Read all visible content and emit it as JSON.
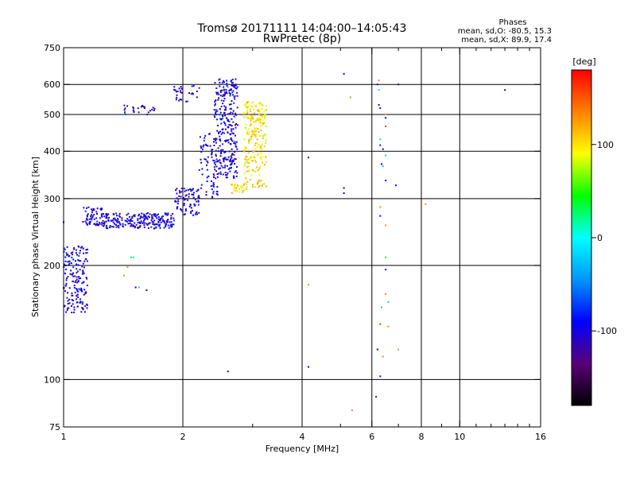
{
  "chart_data": {
    "type": "scatter",
    "title": "Tromsø 20171111 14:04:00–14:05:43",
    "subtitle": "RwPretec (8p)",
    "xlabel": "Frequency [MHz]",
    "ylabel": "Stationary phase Virtual Height [km]",
    "x_scale": "log",
    "y_scale": "log",
    "xlim": [
      1,
      16
    ],
    "ylim": [
      75,
      750
    ],
    "x_ticks": [
      1,
      2,
      4,
      6,
      8,
      10,
      16
    ],
    "x_tick_labels": [
      "1",
      "2",
      "4",
      "6",
      "8",
      "10",
      "16"
    ],
    "x_minor_ticks": [
      3,
      5,
      7,
      9,
      11,
      12,
      13,
      14,
      15
    ],
    "x_grid": [
      2,
      4,
      6,
      8,
      10
    ],
    "y_ticks": [
      75,
      100,
      200,
      300,
      400,
      500,
      600,
      750
    ],
    "y_tick_labels": [
      "75",
      "100",
      "200",
      "300",
      "400",
      "500",
      "600",
      "750"
    ],
    "y_grid": [
      100,
      200,
      300,
      400,
      500,
      600
    ],
    "grid": true,
    "phase_stats": {
      "heading": "Phases",
      "o_line": "mean, sd,O: -80.5, 15.3",
      "x_line": "mean, sd,X:  89.9, 17.4"
    },
    "colorbar": {
      "label": "[deg]",
      "range": [
        -180,
        180
      ],
      "ticks": [
        100,
        0,
        -100
      ],
      "tick_labels": [
        "100",
        "0",
        "-100"
      ],
      "colors": [
        "#000000",
        "#5a0078",
        "#0000ff",
        "#0096ff",
        "#00ffff",
        "#00ff00",
        "#ffff00",
        "#ff8000",
        "#ff0000"
      ]
    },
    "series": [
      {
        "phase": -100,
        "segments": [
          {
            "x_range": [
              1.0,
              1.15
            ],
            "y_range": [
              150,
              225
            ],
            "n": 170
          },
          {
            "x_range": [
              1.12,
              1.25
            ],
            "y_range": [
              255,
              285
            ],
            "n": 60
          },
          {
            "x_range": [
              1.25,
              1.9
            ],
            "y_range": [
              250,
              275
            ],
            "n": 240
          },
          {
            "x_range": [
              1.9,
              2.2
            ],
            "y_range": [
              270,
              320
            ],
            "n": 80
          },
          {
            "x_range": [
              2.2,
              2.45
            ],
            "y_range": [
              300,
              450
            ],
            "n": 80
          },
          {
            "x_range": [
              2.4,
              2.75
            ],
            "y_range": [
              340,
              620
            ],
            "n": 280
          },
          {
            "x_range": [
              1.4,
              1.7
            ],
            "y_range": [
              500,
              530
            ],
            "n": 25
          },
          {
            "x_range": [
              1.9,
              2.2
            ],
            "y_range": [
              540,
              595
            ],
            "n": 30
          }
        ]
      },
      {
        "phase": 100,
        "segments": [
          {
            "x_range": [
              2.65,
              2.9
            ],
            "y_range": [
              310,
              330
            ],
            "n": 30
          },
          {
            "x_range": [
              2.85,
              3.25
            ],
            "y_range": [
              320,
              540
            ],
            "n": 240
          }
        ]
      },
      {
        "phase": -90,
        "points": [
          [
            1.0,
            260
          ],
          [
            1.1,
            195
          ],
          [
            1.52,
            175
          ],
          [
            1.62,
            172
          ],
          [
            2.6,
            105
          ],
          [
            4.15,
            385
          ],
          [
            4.15,
            108
          ],
          [
            5.1,
            320
          ],
          [
            5.1,
            310
          ],
          [
            5.1,
            640
          ],
          [
            6.2,
            600
          ],
          [
            6.25,
            530
          ],
          [
            6.3,
            415
          ],
          [
            6.3,
            520
          ],
          [
            6.35,
            370
          ],
          [
            6.4,
            405
          ],
          [
            6.5,
            490
          ],
          [
            6.5,
            335
          ],
          [
            6.5,
            195
          ],
          [
            7.0,
            600
          ],
          [
            6.3,
            270
          ],
          [
            6.2,
            120
          ],
          [
            6.3,
            102
          ],
          [
            6.15,
            90
          ],
          [
            6.9,
            325
          ],
          [
            13.0,
            580
          ]
        ]
      },
      {
        "phase": -20,
        "points": [
          [
            1.5,
            210
          ],
          [
            6.25,
            580
          ],
          [
            6.3,
            430
          ],
          [
            6.4,
            365
          ],
          [
            6.5,
            390
          ],
          [
            6.35,
            155
          ],
          [
            6.6,
            160
          ],
          [
            1.55,
            175
          ],
          [
            2.6,
            590
          ]
        ]
      },
      {
        "phase": 40,
        "points": [
          [
            1.48,
            210
          ],
          [
            6.5,
            210
          ]
        ]
      },
      {
        "phase": 130,
        "points": [
          [
            1.45,
            198
          ],
          [
            1.42,
            188
          ],
          [
            4.15,
            178
          ],
          [
            5.3,
            555
          ],
          [
            6.3,
            285
          ],
          [
            6.5,
            255
          ],
          [
            6.4,
            115
          ],
          [
            6.6,
            138
          ],
          [
            6.5,
            500
          ],
          [
            7.0,
            120
          ],
          [
            8.2,
            290
          ],
          [
            5.35,
            83
          ],
          [
            6.5,
            168
          ],
          [
            6.25,
            615
          ]
        ]
      },
      {
        "phase": 165,
        "points": [
          [
            6.3,
            140
          ],
          [
            6.5,
            465
          ]
        ]
      }
    ]
  }
}
